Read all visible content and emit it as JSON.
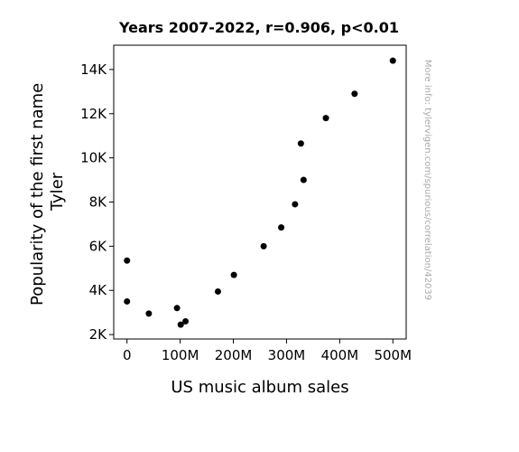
{
  "chart_data": {
    "type": "scatter",
    "title": "Years 2007-2022, r=0.906, p<0.01",
    "xlabel": "US music album sales",
    "ylabel_lines": [
      "Popularity of the first name",
      "Tyler"
    ],
    "x_ticks": [
      {
        "value": 0,
        "label": "0"
      },
      {
        "value": 100000000,
        "label": "100M"
      },
      {
        "value": 200000000,
        "label": "200M"
      },
      {
        "value": 300000000,
        "label": "300M"
      },
      {
        "value": 400000000,
        "label": "400M"
      },
      {
        "value": 500000000,
        "label": "500M"
      }
    ],
    "y_ticks": [
      {
        "value": 2000,
        "label": "2K"
      },
      {
        "value": 4000,
        "label": "4K"
      },
      {
        "value": 6000,
        "label": "6K"
      },
      {
        "value": 8000,
        "label": "8K"
      },
      {
        "value": 10000,
        "label": "10K"
      },
      {
        "value": 12000,
        "label": "12K"
      },
      {
        "value": 14000,
        "label": "14K"
      }
    ],
    "xlim": [
      -25000000,
      525000000
    ],
    "ylim": [
      1800,
      15100
    ],
    "grid": false,
    "marker_color": "#000000",
    "points": [
      {
        "x": 500000000,
        "y": 14400
      },
      {
        "x": 428000000,
        "y": 12900
      },
      {
        "x": 374000000,
        "y": 11800
      },
      {
        "x": 327000000,
        "y": 10650
      },
      {
        "x": 332000000,
        "y": 9000
      },
      {
        "x": 316000000,
        "y": 7900
      },
      {
        "x": 290000000,
        "y": 6850
      },
      {
        "x": 257000000,
        "y": 6000
      },
      {
        "x": 201000000,
        "y": 4700
      },
      {
        "x": 171000000,
        "y": 3950
      },
      {
        "x": 94000000,
        "y": 3200
      },
      {
        "x": 110000000,
        "y": 2600
      },
      {
        "x": 101000000,
        "y": 2450
      },
      {
        "x": 41000000,
        "y": 2950
      },
      {
        "x": 0,
        "y": 3500
      },
      {
        "x": 0,
        "y": 5350
      }
    ]
  },
  "watermark": "More info: tylervigen.com/spurious/correlation/42039"
}
